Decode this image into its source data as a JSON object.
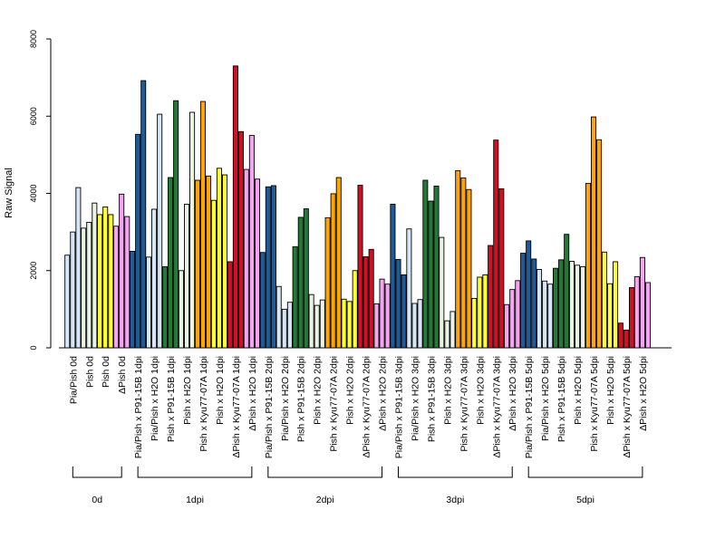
{
  "chart_data": {
    "type": "bar",
    "ylabel": "Raw Signal",
    "ylim": [
      0,
      8000
    ],
    "yticks": [
      0,
      2000,
      4000,
      6000,
      8000
    ],
    "grid": false,
    "legend": "none",
    "bars_per_category": 3,
    "colors": {
      "light_blue": "#d7e6f4",
      "dark_blue": "#1f5b99",
      "light_green": "#e9f4e4",
      "dark_green": "#237a37",
      "yellow": "#ffff33",
      "orange": "#ffa500",
      "red": "#d40f23",
      "pink": "#f6a3f3"
    },
    "categories": [
      {
        "label": "Pia/Pish 0d",
        "values": [
          2400,
          3000,
          4150
        ],
        "color": "light_blue"
      },
      {
        "label": "Pish 0d",
        "values": [
          3100,
          3250,
          3750
        ],
        "color": "light_green"
      },
      {
        "label": "Pish 0d",
        "values": [
          3450,
          3650,
          3450
        ],
        "color": "yellow"
      },
      {
        "label": "ΔPish 0d",
        "values": [
          3150,
          3980,
          3400
        ],
        "color": "pink"
      },
      {
        "label": "Pia/Pish x P91-15B 1dpi",
        "values": [
          2500,
          5530,
          6920
        ],
        "color": "dark_blue"
      },
      {
        "label": "Pia/Pish x H2O 1dpi",
        "values": [
          2350,
          3590,
          6050
        ],
        "color": "light_blue"
      },
      {
        "label": "Pish x P91-15B 1dpi",
        "values": [
          2100,
          4410,
          6400
        ],
        "color": "dark_green"
      },
      {
        "label": "Pish x H2O 1dpi",
        "values": [
          2000,
          3720,
          6100
        ],
        "color": "light_green"
      },
      {
        "label": "Pish x Kyu77-07A 1dpi",
        "values": [
          4340,
          6380,
          4450
        ],
        "color": "orange"
      },
      {
        "label": "Pish x H2O 1dpi",
        "values": [
          3820,
          4650,
          4480
        ],
        "color": "yellow"
      },
      {
        "label": "ΔPish x Kyu77-07A 1dpi",
        "values": [
          2230,
          7300,
          5600
        ],
        "color": "red"
      },
      {
        "label": "ΔPish x H2O 1dpi",
        "values": [
          4620,
          5500,
          4370
        ],
        "color": "pink"
      },
      {
        "label": "Pia/Pish x P91-15B 2dpi",
        "values": [
          2470,
          4170,
          4200
        ],
        "color": "dark_blue"
      },
      {
        "label": "Pia/Pish x H2O 2dpi",
        "values": [
          1590,
          1000,
          1180
        ],
        "color": "light_blue"
      },
      {
        "label": "Pish x P91-15B 2dpi",
        "values": [
          2620,
          3380,
          3600
        ],
        "color": "dark_green"
      },
      {
        "label": "Pish x H2O 2dpi",
        "values": [
          1380,
          1100,
          1240
        ],
        "color": "light_green"
      },
      {
        "label": "Pish x Kyu77-07A 2dpi",
        "values": [
          3370,
          3990,
          4410
        ],
        "color": "orange"
      },
      {
        "label": "Pish x H2O 2dpi",
        "values": [
          1260,
          1200,
          2000
        ],
        "color": "yellow"
      },
      {
        "label": "ΔPish x Kyu77-07A 2dpi",
        "values": [
          4210,
          2360,
          2550
        ],
        "color": "red"
      },
      {
        "label": "ΔPish x H2O 2dpi",
        "values": [
          1140,
          1780,
          1650
        ],
        "color": "pink"
      },
      {
        "label": "Pia/Pish x P91-15B 3dpi",
        "values": [
          3720,
          2290,
          1890
        ],
        "color": "dark_blue"
      },
      {
        "label": "Pia/Pish x H2O 3dpi",
        "values": [
          3080,
          1150,
          1250
        ],
        "color": "light_blue"
      },
      {
        "label": "Pish x P91-15B 3dpi",
        "values": [
          4340,
          3800,
          4190
        ],
        "color": "dark_green"
      },
      {
        "label": "Pish x H2O 3dpi",
        "values": [
          2860,
          700,
          940
        ],
        "color": "light_green"
      },
      {
        "label": "Pish x Kyu77-07A 3dpi",
        "values": [
          4590,
          4400,
          4100
        ],
        "color": "orange"
      },
      {
        "label": "Pish x H2O 3dpi",
        "values": [
          1280,
          1830,
          1890
        ],
        "color": "yellow"
      },
      {
        "label": "ΔPish x Kyu77-07A 3dpi",
        "values": [
          2650,
          5380,
          4120
        ],
        "color": "red"
      },
      {
        "label": "ΔPish x H2O 3dpi",
        "values": [
          1120,
          1510,
          1740
        ],
        "color": "pink"
      },
      {
        "label": "Pia/Pish x P91-15B 5dpi",
        "values": [
          2450,
          2770,
          2300
        ],
        "color": "dark_blue"
      },
      {
        "label": "Pia/Pish x H2O 5dpi",
        "values": [
          2030,
          1730,
          1650
        ],
        "color": "light_blue"
      },
      {
        "label": "Pish x P91-15B 5dpi",
        "values": [
          2060,
          2280,
          2940
        ],
        "color": "dark_green"
      },
      {
        "label": "Pish x H2O 5dpi",
        "values": [
          2240,
          2140,
          2100
        ],
        "color": "light_green"
      },
      {
        "label": "Pish x Kyu77-07A 5dpi",
        "values": [
          4260,
          5980,
          5390
        ],
        "color": "orange"
      },
      {
        "label": "Pish x H2O 5dpi",
        "values": [
          2480,
          1660,
          2230
        ],
        "color": "yellow"
      },
      {
        "label": "ΔPish x Kyu77-07A 5dpi",
        "values": [
          640,
          460,
          1560
        ],
        "color": "red"
      },
      {
        "label": "ΔPish x H2O 5dpi",
        "values": [
          1840,
          2340,
          1690
        ],
        "color": "pink"
      }
    ],
    "groups": [
      {
        "label": "0d",
        "first": 0,
        "last": 3
      },
      {
        "label": "1dpi",
        "first": 4,
        "last": 11
      },
      {
        "label": "2dpi",
        "first": 12,
        "last": 19
      },
      {
        "label": "3dpi",
        "first": 20,
        "last": 27
      },
      {
        "label": "5dpi",
        "first": 28,
        "last": 35
      }
    ]
  }
}
